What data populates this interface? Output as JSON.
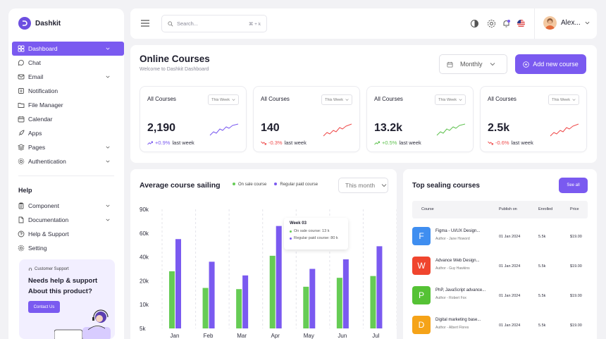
{
  "app": {
    "name": "Dashkit"
  },
  "sidebar": {
    "items": [
      {
        "label": "Dashboard",
        "icon": "grid-icon",
        "active": true,
        "chevron": true
      },
      {
        "label": "Chat",
        "icon": "chat-icon"
      },
      {
        "label": "Email",
        "icon": "mail-icon",
        "chevron": true
      },
      {
        "label": "Notification",
        "icon": "bell-icon"
      },
      {
        "label": "File Manager",
        "icon": "folder-icon"
      },
      {
        "label": "Calendar",
        "icon": "calendar-icon"
      },
      {
        "label": "Apps",
        "icon": "rocket-icon"
      },
      {
        "label": "Pages",
        "icon": "layers-icon",
        "chevron": true
      },
      {
        "label": "Authentication",
        "icon": "gear-icon",
        "chevron": true
      }
    ],
    "help_title": "Help",
    "help_items": [
      {
        "label": "Component",
        "icon": "clipboard-icon",
        "chevron": true
      },
      {
        "label": "Documentation",
        "icon": "doc-icon",
        "chevron": true
      },
      {
        "label": "Help & Support",
        "icon": "support-icon"
      },
      {
        "label": "Setting",
        "icon": "settings-icon"
      }
    ],
    "support": {
      "label": "Customer Support",
      "headline": "Needs help & support About this product?",
      "button": "Contact Us"
    }
  },
  "topbar": {
    "search_placeholder": "Search...",
    "search_shortcut": "⌘ + k",
    "user_name": "Alex..."
  },
  "courses": {
    "title": "Online Courses",
    "subtitle": "Welcome to Dashkit Dashboard",
    "period": "Monthly",
    "add_button": "Add new course",
    "stats": [
      {
        "title": "All Courses",
        "period": "This Week",
        "value": "2,190",
        "change": "+0.9%",
        "change_label": "last week",
        "trend": "up",
        "color": "#7a5af0"
      },
      {
        "title": "All Courses",
        "period": "This Week",
        "value": "140",
        "change": "-0.3%",
        "change_label": "last week",
        "trend": "down",
        "color": "#ef4b4b"
      },
      {
        "title": "All Courses",
        "period": "This Week",
        "value": "13.2k",
        "change": "+0.5%",
        "change_label": "last week",
        "trend": "up",
        "color": "#5fc24f"
      },
      {
        "title": "All Courses",
        "period": "This Week",
        "value": "2.5k",
        "change": "-0.6%",
        "change_label": "last week",
        "trend": "down",
        "color": "#ef4b4b"
      }
    ]
  },
  "chart_panel": {
    "title": "Average course sailing",
    "period": "This month",
    "tooltip": {
      "title": "Week 03",
      "row1": "On sale course: 13 k",
      "row2": "Regular paid course: 80 k"
    }
  },
  "chart_data": {
    "type": "bar",
    "categories": [
      "Jan",
      "Feb",
      "Mar",
      "Apr",
      "May",
      "Jun",
      "Jul"
    ],
    "series": [
      {
        "name": "On sale course",
        "color": "#66cc55",
        "values": [
          28,
          17,
          16.5,
          41,
          17.5,
          22.5,
          24
        ]
      },
      {
        "name": "Regular paid course",
        "color": "#7a5af0",
        "values": [
          55,
          36,
          24.5,
          69,
          30,
          38,
          49
        ]
      }
    ],
    "yticks": [
      "5k",
      "10k",
      "20k",
      "40k",
      "60k",
      "90k"
    ],
    "ylim": [
      5,
      90
    ]
  },
  "top_selling": {
    "title": "Top sealing courses",
    "see_all": "See all",
    "columns": [
      "Course",
      "Publish on",
      "Enrolled",
      "Price"
    ],
    "rows": [
      {
        "letter": "F",
        "color": "#3f8ef0",
        "name": "Figma - UI/UX Design...",
        "author": "Author - Jane Howord",
        "published": "01 Jan 2024",
        "enrolled": "5.5k",
        "price": "$19.00"
      },
      {
        "letter": "W",
        "color": "#f0452e",
        "name": "Advance Web Design...",
        "author": "Author - Guy Hawkins",
        "published": "01 Jan 2024",
        "enrolled": "5.5k",
        "price": "$19.00"
      },
      {
        "letter": "P",
        "color": "#55c235",
        "name": "PhP, JavaScript advance...",
        "author": "Author - Robert Fox",
        "published": "01 Jan 2024",
        "enrolled": "5.5k",
        "price": "$19.00"
      },
      {
        "letter": "D",
        "color": "#f5a318",
        "name": "Digital marketing base...",
        "author": "Author - Albert Flores",
        "published": "01 Jan 2024",
        "enrolled": "5.5k",
        "price": "$19.00"
      }
    ]
  }
}
